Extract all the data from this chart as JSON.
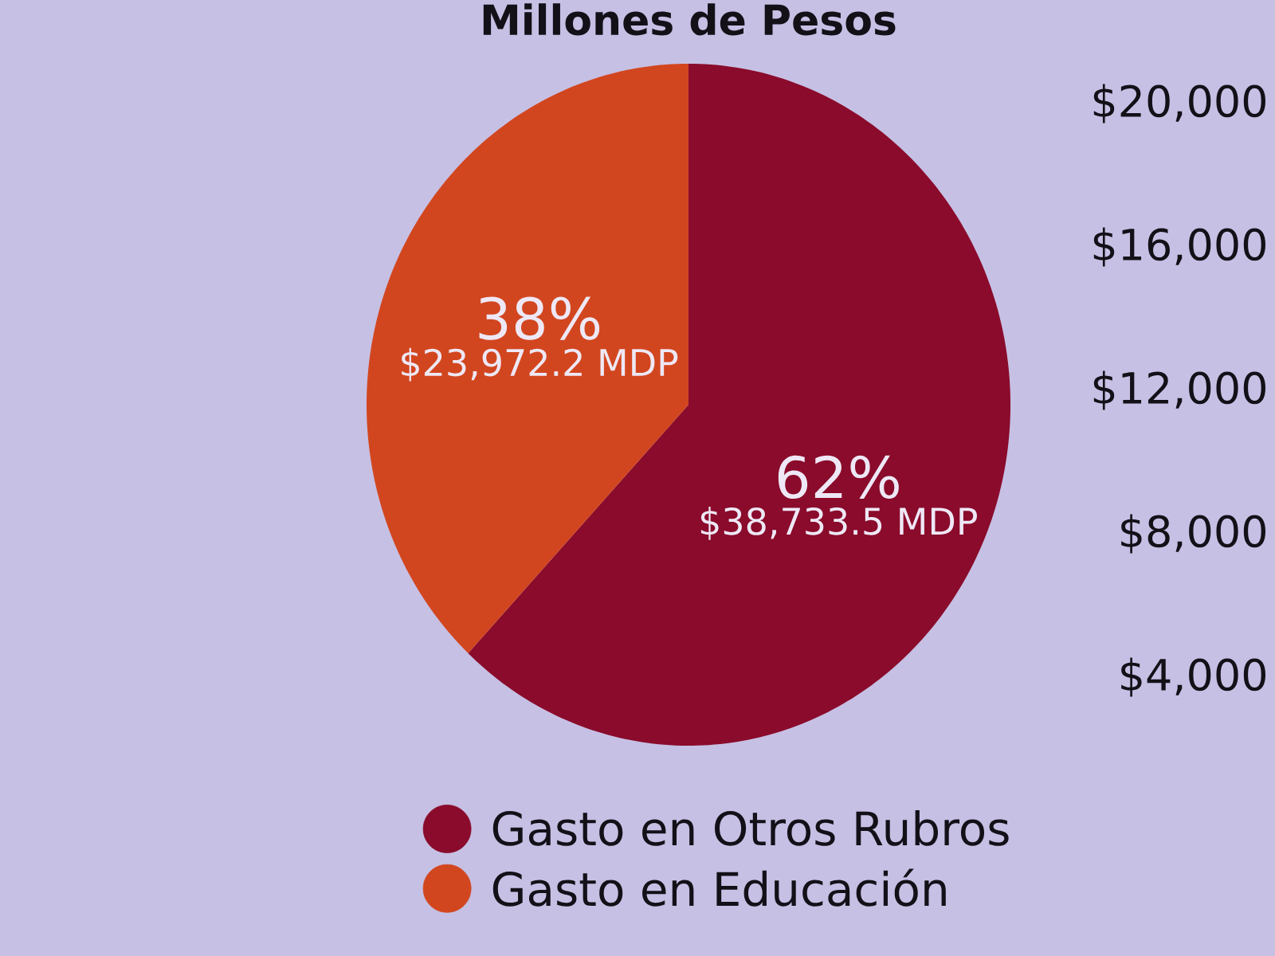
{
  "chart_data": {
    "type": "pie",
    "title": "Millones de Pesos",
    "categories": [
      "Gasto en Otros Rubros",
      "Gasto en Educación"
    ],
    "values": [
      62,
      38
    ],
    "colors": [
      "#8a0b2b",
      "#d2461f"
    ],
    "value_labels": [
      "62%",
      "38%"
    ],
    "legend": "bottom",
    "annotations": [
      "$38,733.5 MDP",
      "$23,972.2 MDP",
      "$20,000",
      "$16,000",
      "$12,000",
      "$8,000",
      "$4,000"
    ]
  }
}
